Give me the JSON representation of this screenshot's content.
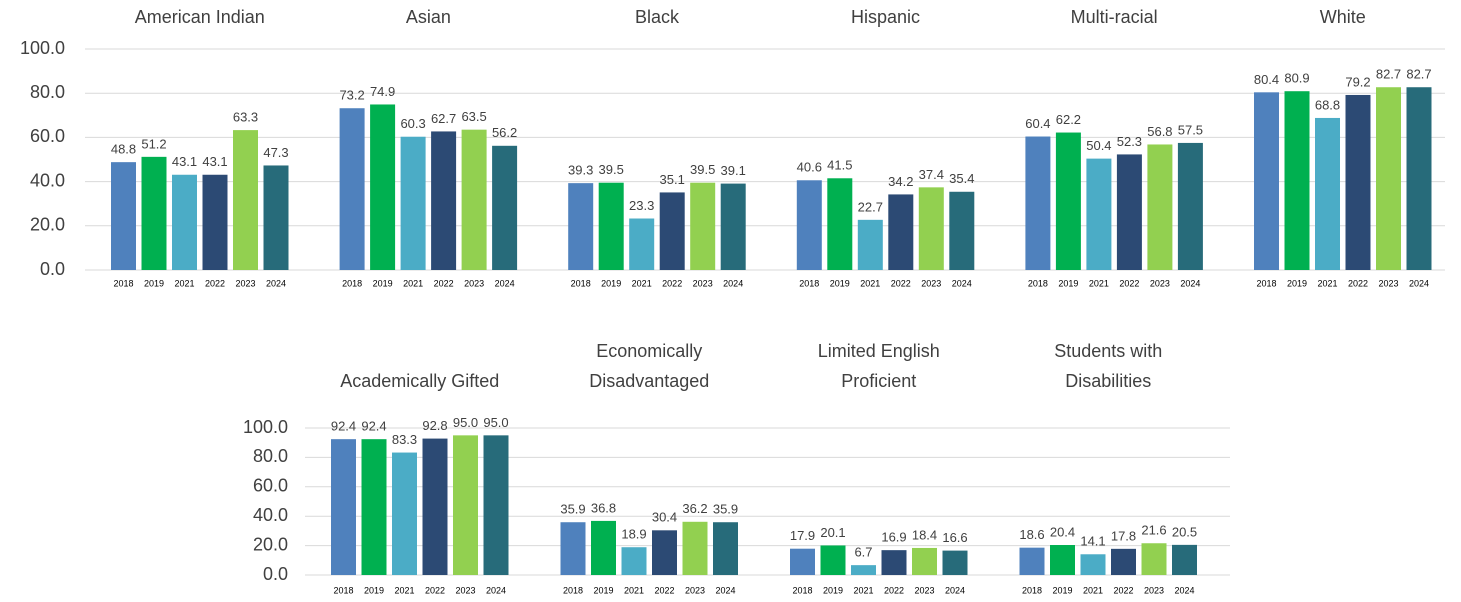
{
  "chart_data": [
    {
      "type": "bar",
      "categories": [
        "2018",
        "2019",
        "2021",
        "2022",
        "2023",
        "2024"
      ],
      "colors": [
        "#4f81bd",
        "#00b050",
        "#4bacc6",
        "#2c4a74",
        "#92d050",
        "#276b7a"
      ],
      "ylim": [
        0,
        100
      ],
      "yticks": [
        {
          "value": 0,
          "label": "0.0"
        },
        {
          "value": 20,
          "label": "20.0"
        },
        {
          "value": 40,
          "label": "40.0"
        },
        {
          "value": 60,
          "label": "60.0"
        },
        {
          "value": 80,
          "label": "80.0"
        },
        {
          "value": 100,
          "label": "100.0"
        }
      ],
      "grid": true,
      "panels": [
        {
          "title": [
            "American Indian"
          ],
          "values": [
            48.8,
            51.2,
            43.1,
            43.1,
            63.3,
            47.3
          ]
        },
        {
          "title": [
            "Asian"
          ],
          "values": [
            73.2,
            74.9,
            60.3,
            62.7,
            63.5,
            56.2
          ]
        },
        {
          "title": [
            "Black"
          ],
          "values": [
            39.3,
            39.5,
            23.3,
            35.1,
            39.5,
            39.1
          ]
        },
        {
          "title": [
            "Hispanic"
          ],
          "values": [
            40.6,
            41.5,
            22.7,
            34.2,
            37.4,
            35.4
          ]
        },
        {
          "title": [
            "Multi-racial"
          ],
          "values": [
            60.4,
            62.2,
            50.4,
            52.3,
            56.8,
            57.5
          ]
        },
        {
          "title": [
            "White"
          ],
          "values": [
            80.4,
            80.9,
            68.8,
            79.2,
            82.7,
            82.7
          ]
        }
      ]
    },
    {
      "type": "bar",
      "categories": [
        "2018",
        "2019",
        "2021",
        "2022",
        "2023",
        "2024"
      ],
      "colors": [
        "#4f81bd",
        "#00b050",
        "#4bacc6",
        "#2c4a74",
        "#92d050",
        "#276b7a"
      ],
      "ylim": [
        0,
        100
      ],
      "yticks": [
        {
          "value": 0,
          "label": "0.0"
        },
        {
          "value": 20,
          "label": "20.0"
        },
        {
          "value": 40,
          "label": "40.0"
        },
        {
          "value": 60,
          "label": "60.0"
        },
        {
          "value": 80,
          "label": "80.0"
        },
        {
          "value": 100,
          "label": "100.0"
        }
      ],
      "grid": true,
      "panels": [
        {
          "title": [
            "Academically Gifted"
          ],
          "values": [
            92.4,
            92.4,
            83.3,
            92.8,
            95.0,
            95.0
          ],
          "value_labels": [
            "92.4",
            "92.4",
            "83.3",
            "92.8",
            "95.0",
            "95.0"
          ]
        },
        {
          "title": [
            "Economically",
            "Disadvantaged"
          ],
          "values": [
            35.9,
            36.8,
            18.9,
            30.4,
            36.2,
            35.9
          ]
        },
        {
          "title": [
            "Limited English",
            "Proficient"
          ],
          "values": [
            17.9,
            20.1,
            6.7,
            16.9,
            18.4,
            16.6
          ]
        },
        {
          "title": [
            "Students with",
            "Disabilities"
          ],
          "values": [
            18.6,
            20.4,
            14.1,
            17.8,
            21.6,
            20.5
          ]
        }
      ]
    }
  ]
}
